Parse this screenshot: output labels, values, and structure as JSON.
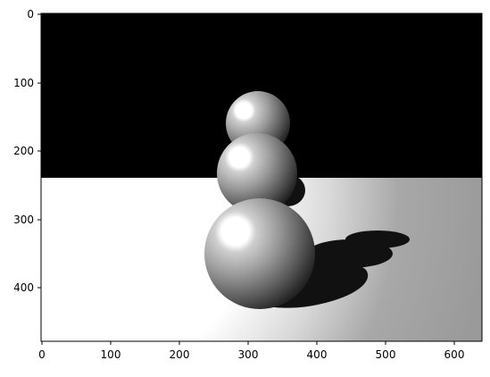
{
  "figure": {
    "background": "#ffffff",
    "image_description_colors": {
      "sky": "#000000",
      "floor_lit": "#ffffff",
      "floor_far": "#9a9a9a",
      "shadow": "#111111"
    },
    "x_axis": {
      "ticks": [
        0,
        100,
        200,
        300,
        400,
        500,
        600
      ],
      "range": [
        0,
        640
      ]
    },
    "y_axis": {
      "ticks": [
        0,
        100,
        200,
        300,
        400
      ],
      "range": [
        0,
        480
      ]
    }
  }
}
